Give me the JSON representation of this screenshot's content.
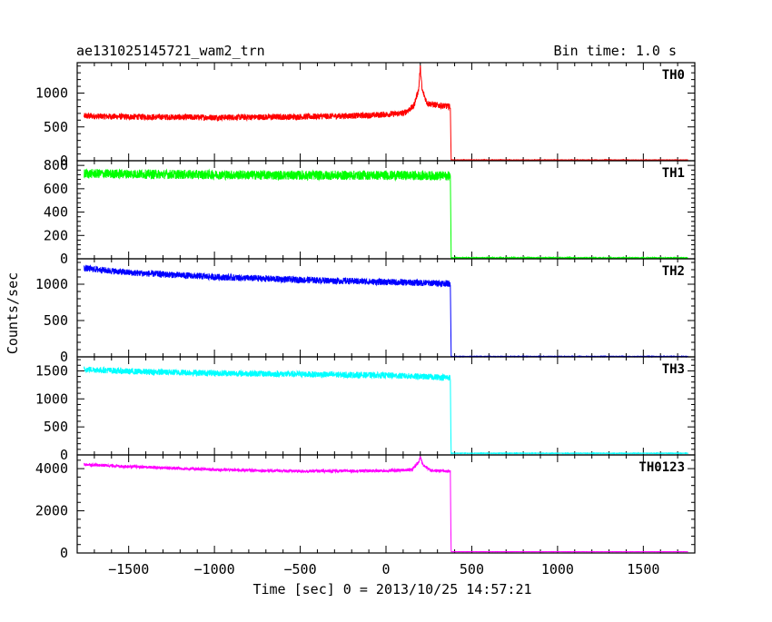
{
  "header": {
    "file_title": "ae131025145721_wam2_trn",
    "bin_time": "Bin time: 1.0 s"
  },
  "xaxis_title": "Time [sec] 0 = 2013/10/25 14:57:21",
  "yaxis_title": "Counts/sec",
  "chart_data": {
    "type": "line",
    "x_range": [
      -1800,
      1800
    ],
    "x_ticks": [
      -1500,
      -1000,
      -500,
      0,
      500,
      1000,
      1500
    ],
    "x_tick_labels": [
      "−1500",
      "−1000",
      "−500",
      "0",
      "500",
      "1000",
      "1500"
    ],
    "grid": false,
    "panels": [
      {
        "label": "TH0",
        "color": "#ff0000",
        "ylim": [
          0,
          1450
        ],
        "y_ticks": [
          0,
          500,
          1000
        ],
        "y_tick_labels": [
          "0",
          "500",
          "1000"
        ],
        "points": [
          [
            -1760,
            660
          ],
          [
            -1500,
            650
          ],
          [
            -1000,
            640
          ],
          [
            -500,
            650
          ],
          [
            -100,
            670
          ],
          [
            100,
            700
          ],
          [
            160,
            800
          ],
          [
            190,
            1050
          ],
          [
            200,
            1380
          ],
          [
            210,
            1050
          ],
          [
            240,
            850
          ],
          [
            300,
            820
          ],
          [
            375,
            800
          ],
          [
            378,
            300
          ],
          [
            380,
            10
          ],
          [
            1760,
            10
          ]
        ],
        "noise": 45
      },
      {
        "label": "TH1",
        "color": "#00ff00",
        "ylim": [
          0,
          840
        ],
        "y_ticks": [
          0,
          200,
          400,
          600,
          800
        ],
        "y_tick_labels": [
          "0",
          "200",
          "400",
          "600",
          "800"
        ],
        "points": [
          [
            -1760,
            730
          ],
          [
            -1000,
            720
          ],
          [
            -500,
            715
          ],
          [
            0,
            715
          ],
          [
            375,
            710
          ],
          [
            378,
            300
          ],
          [
            380,
            8
          ],
          [
            1760,
            8
          ]
        ],
        "noise": 40
      },
      {
        "label": "TH2",
        "color": "#0000ff",
        "ylim": [
          0,
          1350
        ],
        "y_ticks": [
          0,
          500,
          1000
        ],
        "y_tick_labels": [
          "0",
          "500",
          "1000"
        ],
        "points": [
          [
            -1760,
            1220
          ],
          [
            -1500,
            1160
          ],
          [
            -1000,
            1100
          ],
          [
            -500,
            1060
          ],
          [
            0,
            1030
          ],
          [
            375,
            1010
          ],
          [
            378,
            400
          ],
          [
            380,
            5
          ],
          [
            1760,
            5
          ]
        ],
        "noise": 45
      },
      {
        "label": "TH3",
        "color": "#00ffff",
        "ylim": [
          0,
          1750
        ],
        "y_ticks": [
          0,
          500,
          1000,
          1500
        ],
        "y_tick_labels": [
          "0",
          "500",
          "1000",
          "1500"
        ],
        "points": [
          [
            -1760,
            1530
          ],
          [
            -1500,
            1490
          ],
          [
            -1000,
            1460
          ],
          [
            -500,
            1440
          ],
          [
            0,
            1420
          ],
          [
            375,
            1380
          ],
          [
            378,
            400
          ],
          [
            380,
            30
          ],
          [
            1760,
            30
          ]
        ],
        "noise": 55
      },
      {
        "label": "TH0123",
        "color": "#ff00ff",
        "ylim": [
          0,
          4650
        ],
        "y_ticks": [
          0,
          2000,
          4000
        ],
        "y_tick_labels": [
          "0",
          "2000",
          "4000"
        ],
        "points": [
          [
            -1760,
            4200
          ],
          [
            -1500,
            4100
          ],
          [
            -1000,
            3950
          ],
          [
            -500,
            3880
          ],
          [
            0,
            3900
          ],
          [
            150,
            3950
          ],
          [
            190,
            4300
          ],
          [
            200,
            4550
          ],
          [
            215,
            4200
          ],
          [
            260,
            3920
          ],
          [
            375,
            3870
          ],
          [
            378,
            1200
          ],
          [
            380,
            60
          ],
          [
            1760,
            60
          ]
        ],
        "noise": 70
      }
    ]
  }
}
